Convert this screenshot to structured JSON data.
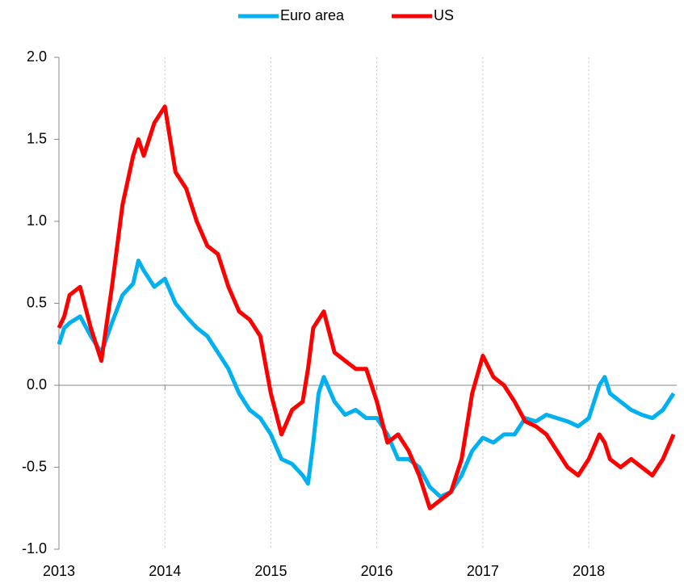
{
  "chart_data": {
    "type": "line",
    "x": [
      2013.0,
      2013.05,
      2013.1,
      2013.2,
      2013.3,
      2013.4,
      2013.5,
      2013.6,
      2013.7,
      2013.75,
      2013.8,
      2013.9,
      2014.0,
      2014.1,
      2014.2,
      2014.3,
      2014.4,
      2014.5,
      2014.6,
      2014.7,
      2014.8,
      2014.9,
      2015.0,
      2015.1,
      2015.2,
      2015.3,
      2015.35,
      2015.4,
      2015.45,
      2015.5,
      2015.6,
      2015.7,
      2015.8,
      2015.9,
      2016.0,
      2016.1,
      2016.2,
      2016.3,
      2016.4,
      2016.5,
      2016.6,
      2016.7,
      2016.8,
      2016.9,
      2017.0,
      2017.1,
      2017.2,
      2017.3,
      2017.4,
      2017.5,
      2017.6,
      2017.7,
      2017.8,
      2017.9,
      2018.0,
      2018.1,
      2018.15,
      2018.2,
      2018.3,
      2018.4,
      2018.5,
      2018.6,
      2018.7,
      2018.8
    ],
    "series": [
      {
        "name": "Euro area",
        "color": "#00b0f0",
        "values": [
          0.25,
          0.35,
          0.38,
          0.42,
          0.3,
          0.2,
          0.38,
          0.55,
          0.62,
          0.76,
          0.7,
          0.6,
          0.65,
          0.5,
          0.42,
          0.35,
          0.3,
          0.2,
          0.1,
          -0.05,
          -0.15,
          -0.2,
          -0.3,
          -0.45,
          -0.48,
          -0.55,
          -0.6,
          -0.35,
          -0.05,
          0.05,
          -0.1,
          -0.18,
          -0.15,
          -0.2,
          -0.2,
          -0.3,
          -0.45,
          -0.45,
          -0.5,
          -0.62,
          -0.68,
          -0.65,
          -0.55,
          -0.4,
          -0.32,
          -0.35,
          -0.3,
          -0.3,
          -0.2,
          -0.22,
          -0.18,
          -0.2,
          -0.22,
          -0.25,
          -0.2,
          0.0,
          0.05,
          -0.05,
          -0.1,
          -0.15,
          -0.18,
          -0.2,
          -0.15,
          -0.05
        ]
      },
      {
        "name": "US",
        "color": "#ff0000",
        "values": [
          0.35,
          0.42,
          0.55,
          0.6,
          0.35,
          0.15,
          0.6,
          1.1,
          1.4,
          1.5,
          1.4,
          1.6,
          1.7,
          1.3,
          1.2,
          1.0,
          0.85,
          0.8,
          0.6,
          0.45,
          0.4,
          0.3,
          -0.05,
          -0.3,
          -0.15,
          -0.1,
          0.1,
          0.35,
          0.4,
          0.45,
          0.2,
          0.15,
          0.1,
          0.1,
          -0.1,
          -0.35,
          -0.3,
          -0.4,
          -0.55,
          -0.75,
          -0.7,
          -0.65,
          -0.45,
          -0.05,
          0.18,
          0.05,
          0.0,
          -0.1,
          -0.22,
          -0.25,
          -0.3,
          -0.4,
          -0.5,
          -0.55,
          -0.45,
          -0.3,
          -0.35,
          -0.45,
          -0.5,
          -0.45,
          -0.5,
          -0.55,
          -0.45,
          -0.3
        ]
      }
    ],
    "xlim": [
      2013,
      2018.83
    ],
    "xticks": [
      2013,
      2014,
      2015,
      2016,
      2017,
      2018
    ],
    "ylim": [
      -1,
      2
    ],
    "yticks": [
      {
        "value": -1,
        "label": "-1.0"
      },
      -0.5,
      {
        "value": 0,
        "label": "0.0"
      },
      0.5,
      {
        "value": 1,
        "label": "1.0"
      },
      1.5,
      {
        "value": 2,
        "label": "2.0"
      }
    ],
    "grid": true,
    "legend": "top"
  }
}
